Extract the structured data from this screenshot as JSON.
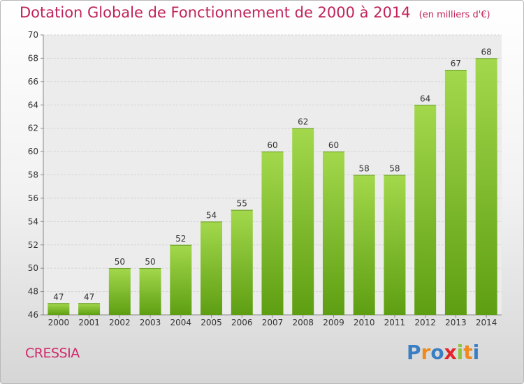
{
  "header": {
    "title": "Dotation Globale de Fonctionnement de 2000 à 2014",
    "unit": "(en milliers d'€)"
  },
  "footer": {
    "place": "CRESSIA",
    "logo_letters": [
      "P",
      "r",
      "o",
      "x",
      "i",
      "t",
      "i"
    ]
  },
  "colors": {
    "title": "#c0235a",
    "bar_light": "#a3d84c",
    "bar_dark": "#5e9e12",
    "logo": [
      "#3a7fc4",
      "#f08a1e",
      "#3a7fc4",
      "#e4232a",
      "#8cc43c",
      "#f08a1e",
      "#3a7fc4"
    ]
  },
  "chart_data": {
    "type": "bar",
    "title": "Dotation Globale de Fonctionnement de 2000 à 2014",
    "categories": [
      "2000",
      "2001",
      "2002",
      "2003",
      "2004",
      "2005",
      "2006",
      "2007",
      "2008",
      "2009",
      "2010",
      "2011",
      "2012",
      "2013",
      "2014"
    ],
    "values": [
      47,
      47,
      50,
      50,
      52,
      54,
      55,
      60,
      62,
      60,
      58,
      58,
      64,
      67,
      68
    ],
    "ylim": [
      46,
      70
    ],
    "yticks": [
      46,
      48,
      50,
      52,
      54,
      56,
      58,
      60,
      62,
      64,
      66,
      68,
      70
    ],
    "grid": true
  }
}
